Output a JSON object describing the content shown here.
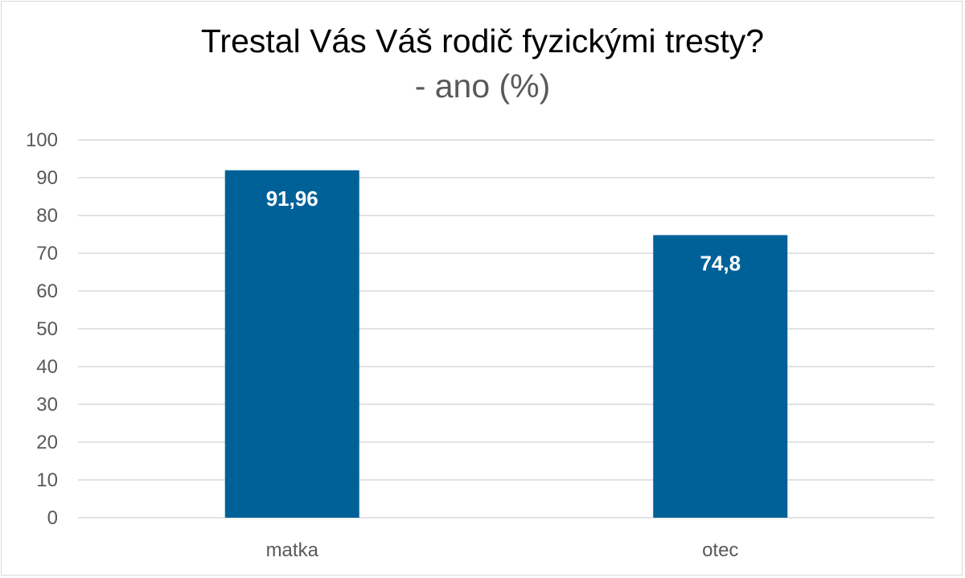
{
  "chart_data": {
    "type": "bar",
    "title": "Trestal Vás Váš rodič fyzickými tresty?",
    "subtitle": "- ano (%)",
    "categories": [
      "matka",
      "otec"
    ],
    "values": [
      91.96,
      74.8
    ],
    "data_labels": [
      "91,96",
      "74,8"
    ],
    "ylim": [
      0,
      100
    ],
    "y_ticks": [
      0,
      10,
      20,
      30,
      40,
      50,
      60,
      70,
      80,
      90,
      100
    ],
    "grid": true,
    "legend": "none",
    "colors": {
      "bar": "#006199",
      "grid": "#d9d9d9",
      "axis_text": "#595959",
      "label_text": "#ffffff"
    }
  }
}
